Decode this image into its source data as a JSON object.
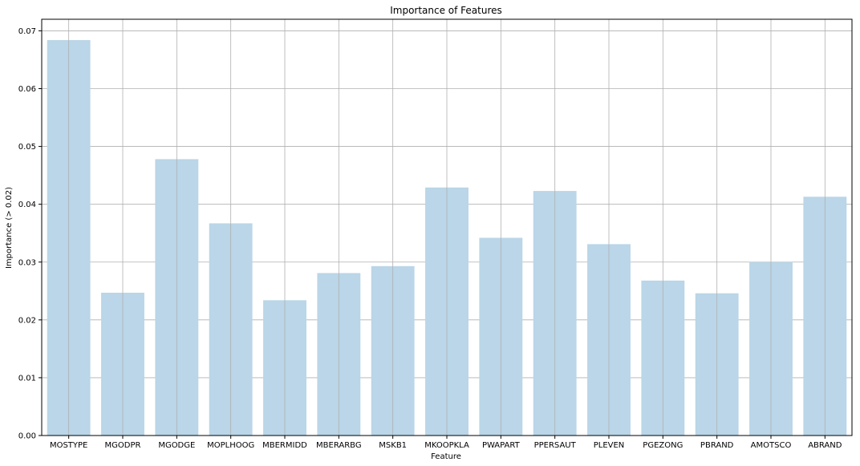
{
  "chart_data": {
    "type": "bar",
    "title": "Importance of Features",
    "xlabel": "Feature",
    "ylabel": "Importance (> 0.02)",
    "categories": [
      "MOSTYPE",
      "MGODPR",
      "MGODGE",
      "MOPLHOOG",
      "MBERMIDD",
      "MBERARBG",
      "MSKB1",
      "MKOOPKLA",
      "PWAPART",
      "PPERSAUT",
      "PLEVEN",
      "PGEZONG",
      "PBRAND",
      "AMOTSCO",
      "ABRAND"
    ],
    "values": [
      0.0684,
      0.0247,
      0.0478,
      0.0367,
      0.0234,
      0.0281,
      0.0293,
      0.0429,
      0.0342,
      0.0423,
      0.0331,
      0.0268,
      0.0246,
      0.03,
      0.0413
    ],
    "ylim": [
      0,
      0.072
    ],
    "yticks": [
      "0.00",
      "0.01",
      "0.02",
      "0.03",
      "0.04",
      "0.05",
      "0.06",
      "0.07"
    ],
    "grid": true,
    "bar_color": "#bad6e8",
    "grid_color": "#b0b0b0"
  }
}
